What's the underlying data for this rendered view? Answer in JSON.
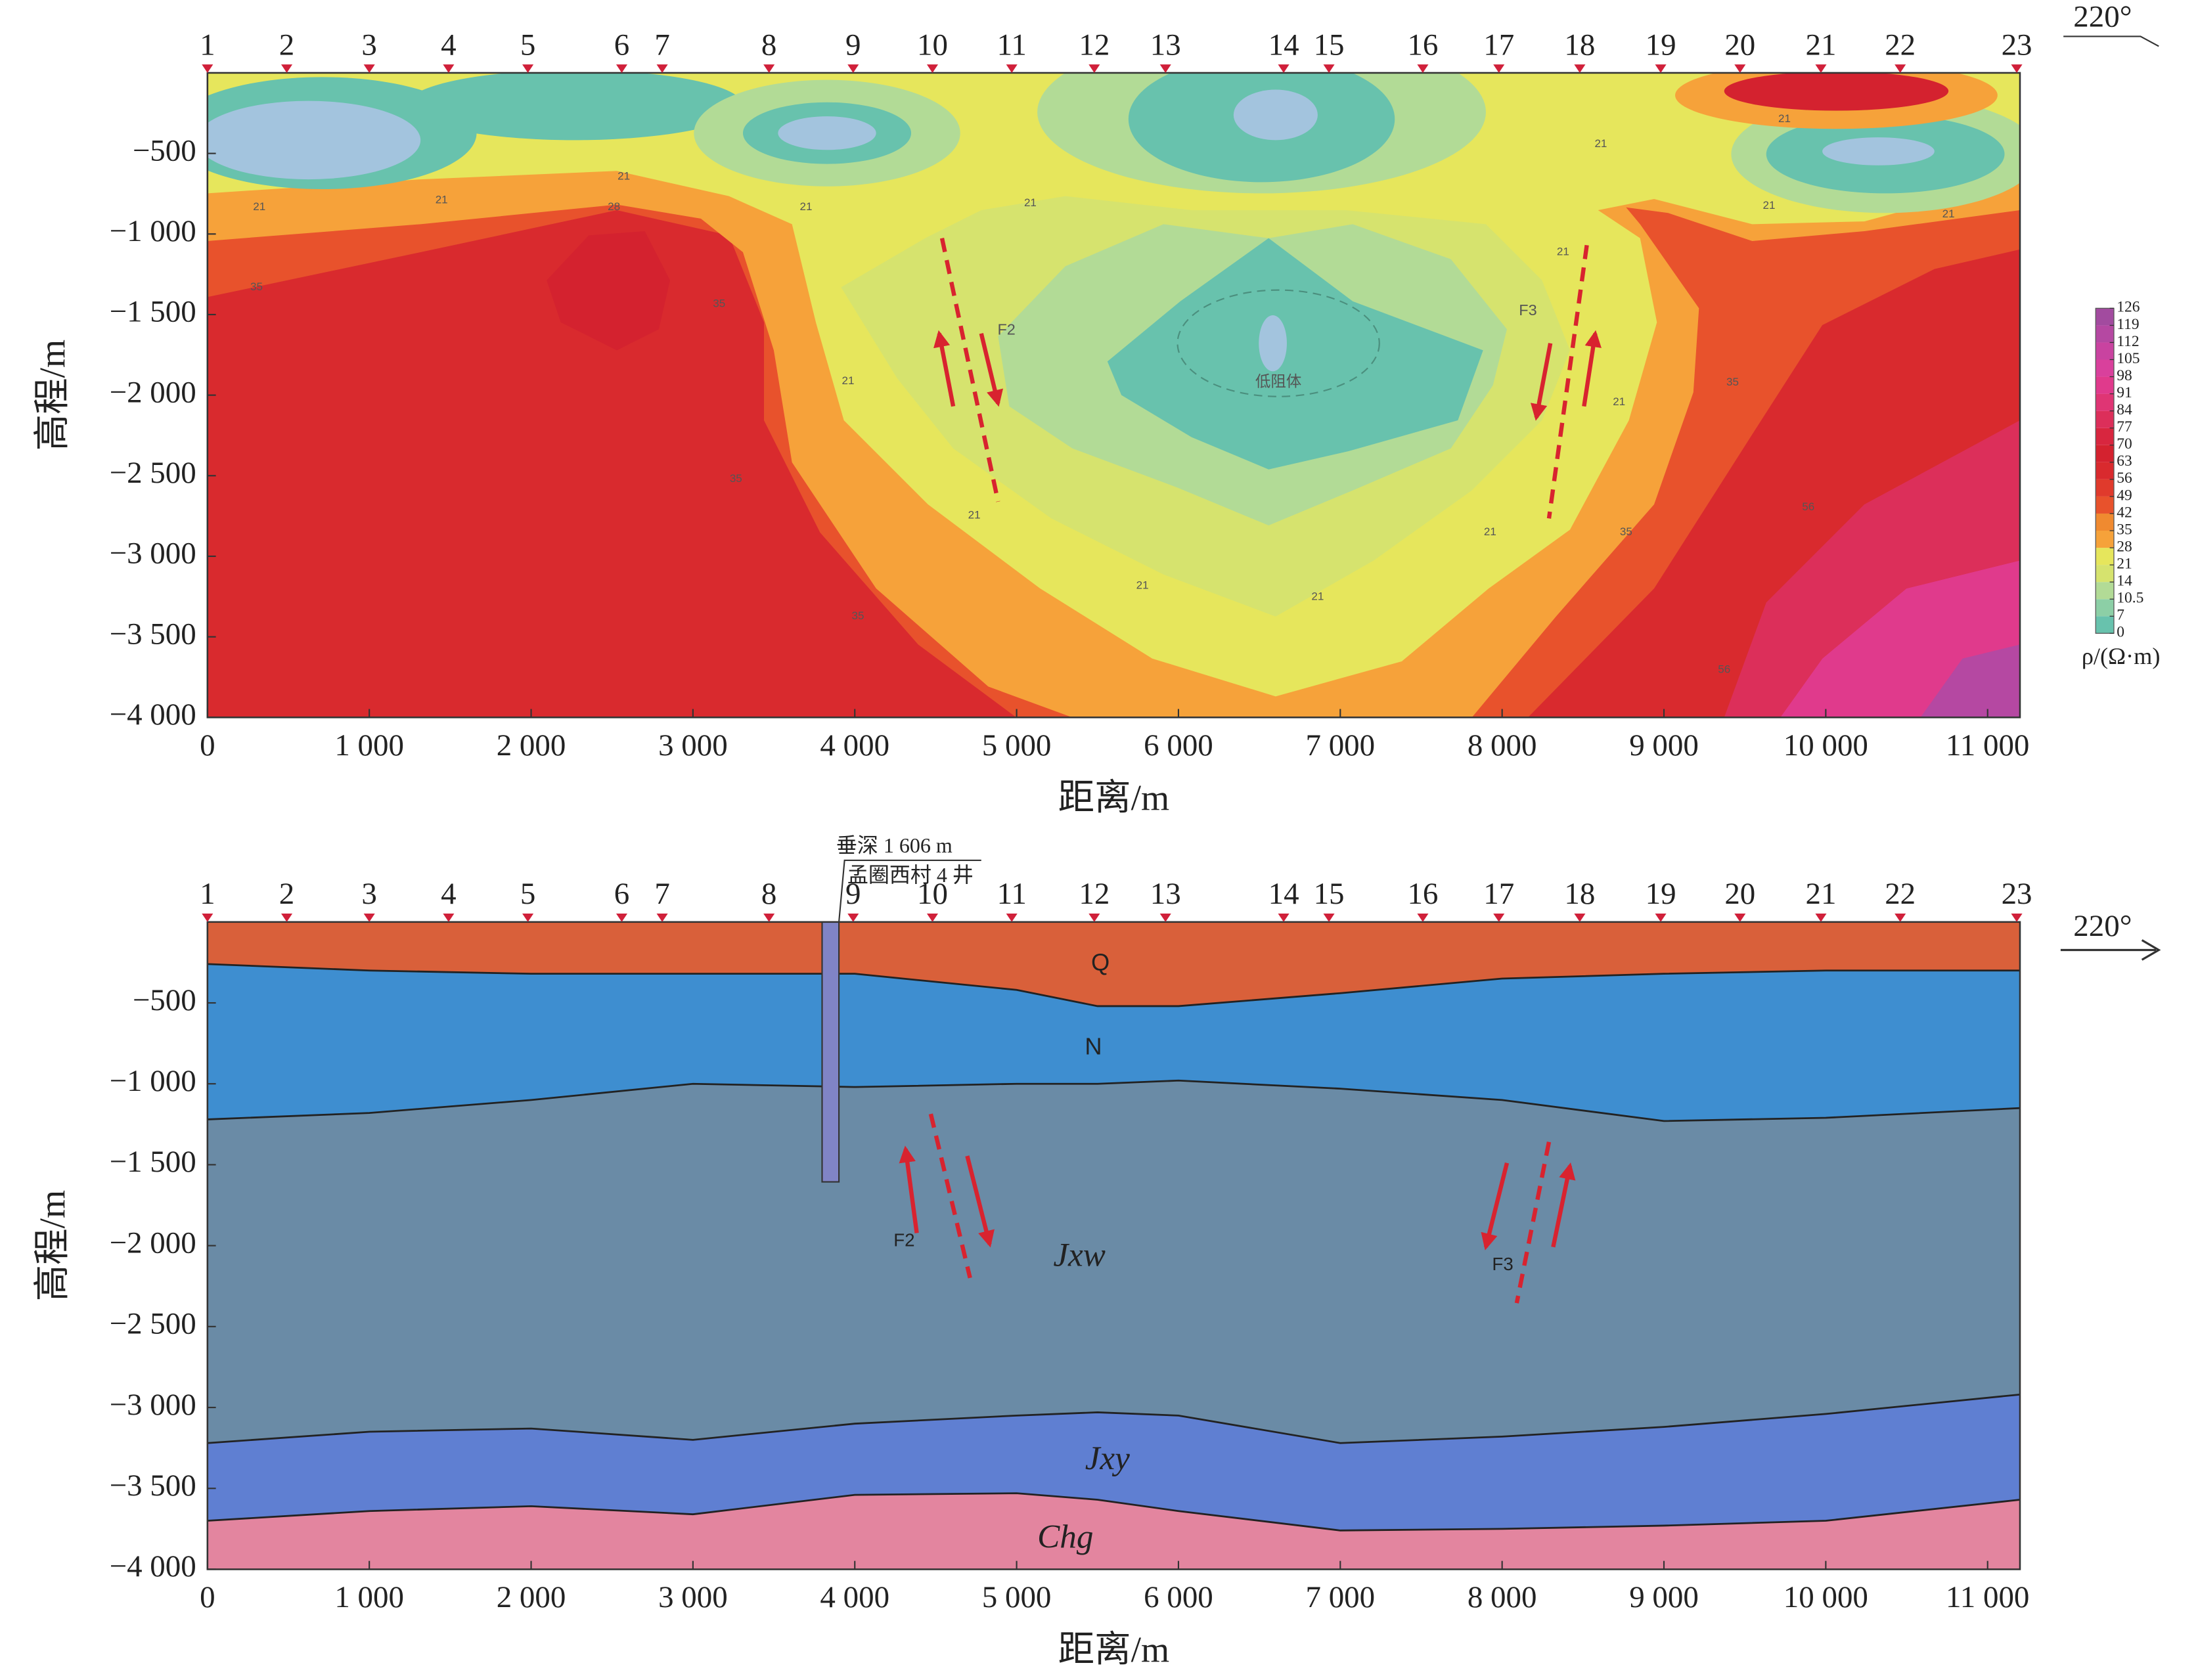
{
  "chart_data": [
    {
      "type": "contour",
      "xlim": [
        0,
        11200
      ],
      "ylim": [
        -4000,
        0
      ],
      "xticks": [
        0,
        {
          "value": 1000,
          "label": "1 000"
        },
        {
          "value": 2000,
          "label": "2 000"
        },
        {
          "value": 3000,
          "label": "3 000"
        },
        {
          "value": 4000,
          "label": "4 000"
        },
        {
          "value": 5000,
          "label": "5 000"
        },
        {
          "value": 6000,
          "label": "6 000"
        },
        {
          "value": 7000,
          "label": "7 000"
        },
        {
          "value": 8000,
          "label": "8 000"
        },
        {
          "value": 9000,
          "label": "9 000"
        },
        {
          "value": 10000,
          "label": "10 000"
        },
        {
          "value": 11000,
          "label": "11 000"
        }
      ],
      "yticks": [
        {
          "value": -500,
          "label": "−500"
        },
        {
          "value": -1000,
          "label": "−1 000"
        },
        {
          "value": -1500,
          "label": "−1 500"
        },
        {
          "value": -2000,
          "label": "−2 000"
        },
        {
          "value": -2500,
          "label": "−2 500"
        },
        {
          "value": -3000,
          "label": "−3 000"
        },
        {
          "value": -3500,
          "label": "−3 500"
        },
        {
          "value": -4000,
          "label": "−4 000"
        }
      ],
      "x_label": "距离/m",
      "y_label": "高程/m",
      "direction": "220°",
      "stations": {
        "labels": [
          "1",
          "2",
          "3",
          "4",
          "5",
          "6",
          "7",
          "8",
          "9",
          "10",
          "11",
          "12",
          "13",
          "14",
          "15",
          "16",
          "17",
          "18",
          "19",
          "20",
          "21",
          "22",
          "23"
        ],
        "x": [
          0,
          490,
          1000,
          1490,
          1980,
          2560,
          2810,
          3470,
          3990,
          4480,
          4970,
          5480,
          5920,
          6650,
          6930,
          7510,
          7980,
          8480,
          8980,
          9470,
          9970,
          10460,
          11180
        ],
        "color": "#d0203a"
      },
      "colorbar": {
        "label": "ρ/(Ω·m)",
        "levels": [
          0,
          7,
          10.5,
          14,
          21,
          28,
          35,
          42,
          49,
          56,
          63,
          70,
          77,
          84,
          91,
          98,
          105,
          112,
          119,
          126
        ],
        "colors": [
          "#68c2ad",
          "#8ccfa6",
          "#b2db96",
          "#d6e36e",
          "#e6e65c",
          "#f6a23a",
          "#f08a30",
          "#e8522c",
          "#e03a2c",
          "#d92a2e",
          "#d4222f",
          "#d8263f",
          "#dc2f5a",
          "#df3574",
          "#e03a8c",
          "#d9409c",
          "#c943a0",
          "#b548a2",
          "#a24b9f"
        ]
      },
      "contour_labels": [
        21,
        21,
        21,
        21,
        21,
        21,
        21,
        21,
        21,
        21,
        21,
        21,
        21,
        21,
        21,
        21,
        35,
        35,
        35,
        35,
        35,
        35,
        28,
        56,
        56
      ],
      "annotations": [
        "F2",
        "F3",
        "低阻体"
      ]
    },
    {
      "type": "section",
      "xlim": [
        0,
        11200
      ],
      "ylim": [
        -4000,
        0
      ],
      "xticks": [
        0,
        {
          "value": 1000,
          "label": "1 000"
        },
        {
          "value": 2000,
          "label": "2 000"
        },
        {
          "value": 3000,
          "label": "3 000"
        },
        {
          "value": 4000,
          "label": "4 000"
        },
        {
          "value": 5000,
          "label": "5 000"
        },
        {
          "value": 6000,
          "label": "6 000"
        },
        {
          "value": 7000,
          "label": "7 000"
        },
        {
          "value": 8000,
          "label": "8 000"
        },
        {
          "value": 9000,
          "label": "9 000"
        },
        {
          "value": 10000,
          "label": "10 000"
        },
        {
          "value": 11000,
          "label": "11 000"
        }
      ],
      "yticks": [
        {
          "value": -500,
          "label": "−500"
        },
        {
          "value": -1000,
          "label": "−1 000"
        },
        {
          "value": -1500,
          "label": "−1 500"
        },
        {
          "value": -2000,
          "label": "−2 000"
        },
        {
          "value": -2500,
          "label": "−2 500"
        },
        {
          "value": -3000,
          "label": "−3 000"
        },
        {
          "value": -3500,
          "label": "−3 500"
        },
        {
          "value": -4000,
          "label": "−4 000"
        }
      ],
      "x_label": "距离/m",
      "y_label": "高程/m",
      "direction": "220°",
      "stations": {
        "labels": [
          "1",
          "2",
          "3",
          "4",
          "5",
          "6",
          "7",
          "8",
          "9",
          "10",
          "11",
          "12",
          "13",
          "14",
          "15",
          "16",
          "17",
          "18",
          "19",
          "20",
          "21",
          "22",
          "23"
        ],
        "x": [
          0,
          490,
          1000,
          1490,
          1980,
          2560,
          2810,
          3470,
          3990,
          4480,
          4970,
          5480,
          5920,
          6650,
          6930,
          7510,
          7980,
          8480,
          8980,
          9470,
          9970,
          10460,
          11180
        ],
        "color": "#d0203a"
      },
      "boundary_x": [
        0,
        1000,
        2000,
        3000,
        4000,
        5000,
        5500,
        6000,
        7000,
        8000,
        9000,
        10000,
        11200
      ],
      "layers": [
        {
          "name": "Q",
          "color": "#d9603a",
          "base": [
            -260,
            -300,
            -320,
            -320,
            -320,
            -420,
            -520,
            -520,
            -440,
            -350,
            -320,
            -300,
            -300
          ]
        },
        {
          "name": "N",
          "color": "#3e8ed0",
          "base": [
            -1220,
            -1180,
            -1100,
            -1000,
            -1020,
            -1000,
            -1000,
            -980,
            -1030,
            -1100,
            -1230,
            -1210,
            -1150
          ]
        },
        {
          "name": "Jxw",
          "color": "#6a8ba6",
          "base": [
            -3220,
            -3150,
            -3130,
            -3200,
            -3100,
            -3050,
            -3030,
            -3050,
            -3220,
            -3180,
            -3120,
            -3040,
            -2920
          ]
        },
        {
          "name": "Jxy",
          "color": "#5f7fd2",
          "base": [
            -3700,
            -3640,
            -3610,
            -3660,
            -3540,
            -3530,
            -3570,
            -3640,
            -3760,
            -3750,
            -3730,
            -3700,
            -3570
          ]
        },
        {
          "name": "Chg",
          "color": "#e3859f"
        }
      ],
      "well": {
        "x": 3850,
        "bottom": -1606,
        "labels": [
          "垂深 1 606 m",
          "孟圈西村 4 井"
        ],
        "color": "#8084c6"
      },
      "annotations": [
        "F2",
        "F3"
      ]
    }
  ]
}
